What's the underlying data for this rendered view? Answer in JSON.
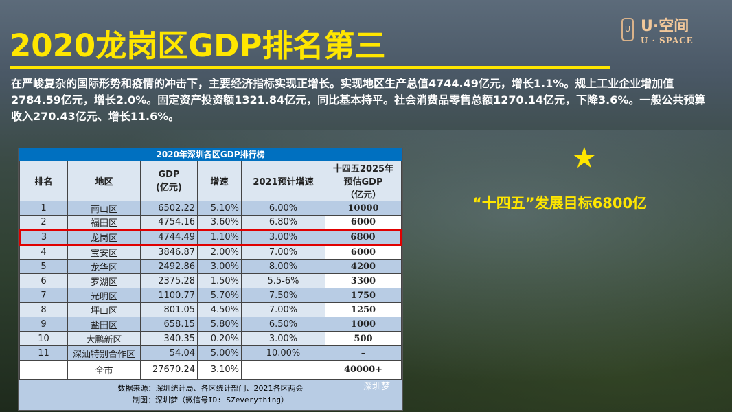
{
  "slide": {
    "title": "2020龙岗区GDP排名第三",
    "paragraph": "在严峻复杂的国际形势和疫情的冲击下，主要经济指标实现正增长。实现地区生产总值4744.49亿元，增长1.1%。规上工业企业增加值2784.59亿元，增长2.0%。固定资产投资额1321.84亿元，同比基本持平。社会消费品零售总额1270.14亿元，下降3.6%。一般公共预算收入270.43亿元、增长11.6%。",
    "goal": "“十四五”发展目标6800亿",
    "accent": "#ffe600"
  },
  "logo": {
    "cn": "U·空间",
    "en": "U · SPACE"
  },
  "table": {
    "title": "2020年深圳各区GDP排行榜",
    "headers": [
      "排名",
      "地区",
      "GDP\n(亿元)",
      "增速",
      "2021预计增速",
      "十四五2025年\n预估GDP\n（亿元）"
    ],
    "rows": [
      [
        "1",
        "南山区",
        "6502.22",
        "5.10%",
        "6.00%",
        "10000"
      ],
      [
        "2",
        "福田区",
        "4754.16",
        "3.60%",
        "6.80%",
        "6000"
      ],
      [
        "3",
        "龙岗区",
        "4744.49",
        "1.10%",
        "3.00%",
        "6800"
      ],
      [
        "4",
        "宝安区",
        "3846.87",
        "2.00%",
        "7.00%",
        "6000"
      ],
      [
        "5",
        "龙华区",
        "2492.86",
        "3.00%",
        "8.00%",
        "4200"
      ],
      [
        "6",
        "罗湖区",
        "2375.28",
        "1.50%",
        "5.5-6%",
        "3300"
      ],
      [
        "7",
        "光明区",
        "1100.77",
        "5.70%",
        "7.50%",
        "1750"
      ],
      [
        "8",
        "坪山区",
        "801.05",
        "4.50%",
        "7.00%",
        "1250"
      ],
      [
        "9",
        "盐田区",
        "658.15",
        "5.80%",
        "6.50%",
        "1000"
      ],
      [
        "10",
        "大鹏新区",
        "340.35",
        "0.20%",
        "3.00%",
        "500"
      ],
      [
        "11",
        "深汕特别合作区",
        "54.04",
        "5.00%",
        "10.00%",
        "–"
      ]
    ],
    "total": [
      "",
      "全市",
      "27670.24",
      "3.10%",
      "",
      "40000+"
    ],
    "source": "数据来源：深圳统计局、各区统计部门、2021各区两会",
    "credit": "制图：深圳梦（微信号ID: SZeverything）",
    "watermark": "深圳梦",
    "highlight_color": "#e00000"
  }
}
